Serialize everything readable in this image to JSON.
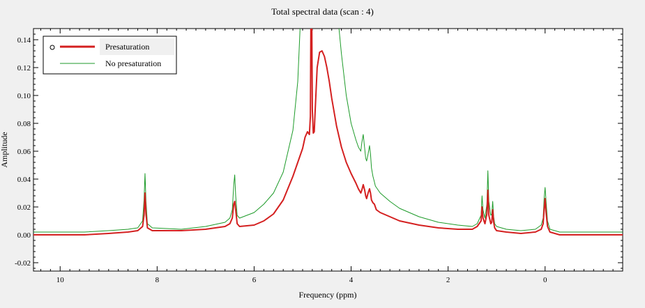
{
  "chart_data": {
    "type": "line",
    "title": "Total spectral data (scan : 4)",
    "xlabel": "Frequency (ppm)",
    "ylabel": "Amplitude",
    "x_reversed": true,
    "xlim": [
      10.55,
      -1.6
    ],
    "ylim": [
      -0.026,
      0.148
    ],
    "grid": false,
    "legend_position": "top-left",
    "x_ticks": [
      10,
      8,
      6,
      4,
      2,
      0
    ],
    "x_tick_labels": [
      "10",
      "8",
      "6",
      "4",
      "2",
      "0"
    ],
    "y_ticks": [
      -0.02,
      0,
      0.02,
      0.04,
      0.06,
      0.08,
      0.1,
      0.12,
      0.14
    ],
    "y_tick_labels": [
      "-0.02",
      "0.00",
      "0.02",
      "0.04",
      "0.06",
      "0.08",
      "0.10",
      "0.12",
      "0.14"
    ],
    "series": [
      {
        "name": "Presaturation",
        "color": "#d42020",
        "x": [
          10.55,
          9.5,
          9.0,
          8.6,
          8.4,
          8.3,
          8.27,
          8.25,
          8.23,
          8.2,
          8.1,
          7.5,
          7.0,
          6.6,
          6.5,
          6.45,
          6.42,
          6.4,
          6.38,
          6.35,
          6.3,
          6.0,
          5.8,
          5.6,
          5.4,
          5.2,
          5.0,
          4.95,
          4.9,
          4.86,
          4.84,
          4.83,
          4.82,
          4.81,
          4.8,
          4.78,
          4.76,
          4.74,
          4.7,
          4.65,
          4.6,
          4.55,
          4.5,
          4.45,
          4.4,
          4.3,
          4.2,
          4.1,
          4.0,
          3.9,
          3.85,
          3.8,
          3.78,
          3.75,
          3.72,
          3.7,
          3.68,
          3.65,
          3.62,
          3.6,
          3.58,
          3.55,
          3.52,
          3.5,
          3.48,
          3.4,
          3.2,
          3.0,
          2.6,
          2.2,
          1.8,
          1.5,
          1.4,
          1.32,
          1.3,
          1.28,
          1.24,
          1.2,
          1.18,
          1.16,
          1.12,
          1.1,
          1.08,
          1.06,
          1.04,
          1.0,
          0.8,
          0.5,
          0.2,
          0.08,
          0.04,
          0.02,
          0.0,
          -0.02,
          -0.05,
          -0.1,
          -0.3,
          -0.8,
          -1.2,
          -1.6
        ],
        "y": [
          0.0,
          0.0,
          0.001,
          0.002,
          0.003,
          0.006,
          0.014,
          0.03,
          0.015,
          0.005,
          0.003,
          0.003,
          0.004,
          0.006,
          0.008,
          0.012,
          0.022,
          0.024,
          0.018,
          0.008,
          0.006,
          0.007,
          0.01,
          0.015,
          0.025,
          0.042,
          0.062,
          0.07,
          0.074,
          0.072,
          0.085,
          0.148,
          0.15,
          0.148,
          0.09,
          0.073,
          0.074,
          0.09,
          0.12,
          0.131,
          0.132,
          0.128,
          0.12,
          0.11,
          0.098,
          0.078,
          0.063,
          0.052,
          0.044,
          0.037,
          0.033,
          0.03,
          0.032,
          0.036,
          0.032,
          0.028,
          0.026,
          0.03,
          0.033,
          0.03,
          0.025,
          0.023,
          0.022,
          0.02,
          0.018,
          0.016,
          0.013,
          0.01,
          0.007,
          0.005,
          0.004,
          0.004,
          0.006,
          0.01,
          0.02,
          0.012,
          0.008,
          0.015,
          0.032,
          0.014,
          0.008,
          0.009,
          0.018,
          0.009,
          0.005,
          0.003,
          0.002,
          0.001,
          0.002,
          0.004,
          0.008,
          0.018,
          0.026,
          0.016,
          0.006,
          0.002,
          0.0,
          0.0,
          0.0,
          0.0
        ]
      },
      {
        "name": "No presaturation",
        "color": "#1c9a28",
        "x": [
          10.55,
          9.5,
          9.0,
          8.6,
          8.4,
          8.3,
          8.27,
          8.25,
          8.23,
          8.2,
          8.1,
          7.5,
          7.0,
          6.6,
          6.5,
          6.45,
          6.42,
          6.4,
          6.38,
          6.35,
          6.3,
          6.0,
          5.8,
          5.6,
          5.4,
          5.2,
          5.1,
          5.05,
          4.9,
          4.8,
          4.6,
          4.4,
          4.3,
          4.25,
          4.2,
          4.1,
          4.0,
          3.9,
          3.85,
          3.8,
          3.78,
          3.75,
          3.72,
          3.7,
          3.68,
          3.65,
          3.62,
          3.6,
          3.58,
          3.55,
          3.52,
          3.5,
          3.48,
          3.4,
          3.2,
          3.0,
          2.6,
          2.2,
          1.8,
          1.5,
          1.4,
          1.32,
          1.3,
          1.28,
          1.24,
          1.2,
          1.18,
          1.16,
          1.12,
          1.1,
          1.08,
          1.06,
          1.04,
          1.0,
          0.8,
          0.5,
          0.2,
          0.08,
          0.04,
          0.02,
          0.0,
          -0.02,
          -0.05,
          -0.1,
          -0.3,
          -0.8,
          -1.2,
          -1.6
        ],
        "y": [
          0.002,
          0.002,
          0.003,
          0.004,
          0.005,
          0.01,
          0.025,
          0.044,
          0.024,
          0.008,
          0.005,
          0.004,
          0.006,
          0.009,
          0.012,
          0.018,
          0.036,
          0.043,
          0.028,
          0.014,
          0.012,
          0.016,
          0.022,
          0.03,
          0.045,
          0.075,
          0.11,
          0.15,
          0.15,
          0.15,
          0.15,
          0.15,
          0.15,
          0.148,
          0.13,
          0.1,
          0.08,
          0.068,
          0.063,
          0.06,
          0.066,
          0.072,
          0.062,
          0.055,
          0.053,
          0.058,
          0.064,
          0.058,
          0.048,
          0.042,
          0.038,
          0.035,
          0.034,
          0.03,
          0.024,
          0.019,
          0.013,
          0.009,
          0.007,
          0.006,
          0.008,
          0.014,
          0.028,
          0.018,
          0.012,
          0.022,
          0.046,
          0.024,
          0.014,
          0.015,
          0.024,
          0.013,
          0.008,
          0.006,
          0.004,
          0.003,
          0.004,
          0.007,
          0.012,
          0.026,
          0.034,
          0.024,
          0.01,
          0.004,
          0.002,
          0.002,
          0.002,
          0.002
        ]
      }
    ]
  }
}
